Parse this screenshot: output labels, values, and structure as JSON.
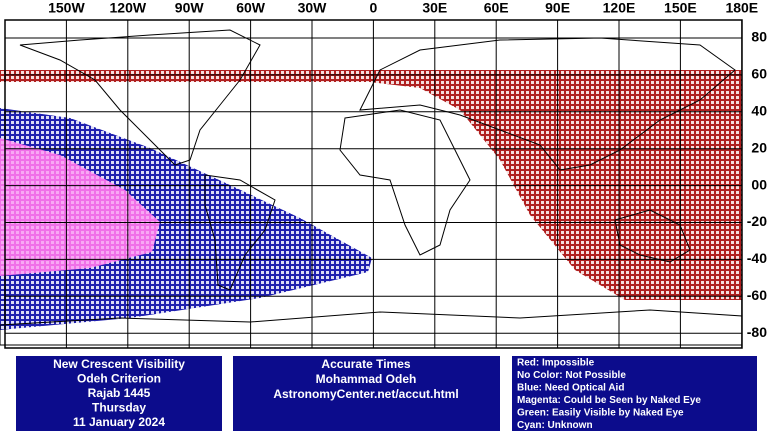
{
  "map": {
    "lon_labels": [
      "150W",
      "120W",
      "90W",
      "60W",
      "30W",
      "0",
      "30E",
      "60E",
      "90E",
      "120E",
      "150E",
      "180E"
    ],
    "lat_labels": [
      "80",
      "60",
      "40",
      "20",
      "00",
      "-20",
      "-40",
      "-60",
      "-80"
    ]
  },
  "info_box": {
    "lines": [
      "New Crescent Visibility",
      "Odeh Criterion",
      "Rajab 1445",
      "Thursday",
      "11 January 2024"
    ]
  },
  "credit_box": {
    "lines": [
      "Accurate Times",
      "Mohammad Odeh",
      "AstronomyCenter.net/accut.html"
    ]
  },
  "legend_box": {
    "lines": [
      "Red: Impossible",
      "No Color: Not Possible",
      "Blue: Need Optical Aid",
      "Magenta: Could be Seen by Naked Eye",
      "Green: Easily Visible by Naked Eye",
      "Cyan: Unknown"
    ]
  }
}
